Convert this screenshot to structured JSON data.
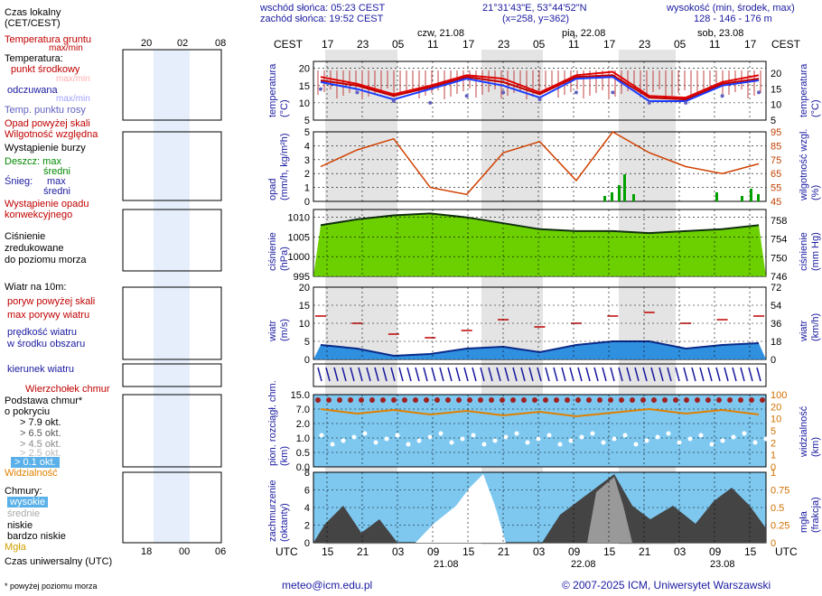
{
  "header": {
    "sunrise": "wschód słońca: 05:23 CEST",
    "sunset": "zachód słońca: 19:52 CEST",
    "coords": "21°31'43\"E, 53°44'52\"N",
    "grid": "(x=258,  y=362)",
    "height_label": "wysokość (min, środek, max)",
    "height_values": "128 - 146 - 176 m",
    "tz_left": "CEST",
    "tz_right": "CEST",
    "utc_left": "UTC",
    "utc_right": "UTC"
  },
  "days": {
    "d1": "czw, 21.08",
    "d2": "pią, 22.08",
    "d3": "sob, 23.08",
    "b1": "21.08",
    "b2": "22.08",
    "b3": "23.08"
  },
  "cest_ticks": [
    "17",
    "23",
    "05",
    "11",
    "17",
    "23",
    "05",
    "11",
    "17",
    "23",
    "05",
    "11",
    "17"
  ],
  "utc_ticks": [
    "15",
    "21",
    "03",
    "09",
    "15",
    "21",
    "03",
    "09",
    "15",
    "21",
    "03",
    "09",
    "15"
  ],
  "legend": {
    "local_time": "Czas lokalny",
    "local_time2": "(CET/CEST)",
    "lt_ticks": [
      "20",
      "02",
      "08"
    ],
    "utc_ticks": [
      "18",
      "00",
      "06"
    ],
    "temp_ground": "Temperatura gruntu",
    "temp_ground2": "max/min",
    "temperature": "Temperatura:",
    "center_point": "punkt środkowy",
    "max_min": "max/min",
    "felt": "odczuwana",
    "max_min2": "max/min",
    "dew": "Temp. punktu rosy",
    "precip_over": "Opad powyżej skali",
    "humidity": "Wilgotność względna",
    "storm": "Wystąpienie burzy",
    "rain": "Deszcz: max",
    "rain_mid": "średni",
    "snow": "Śnieg:",
    "snow_max": "max",
    "snow_mid": "średni",
    "conv": "Wystąpienie opadu",
    "conv2": "konwekcyjnego",
    "pressure": "Ciśnienie",
    "pressure2": "zredukowane",
    "pressure3": "do poziomu morza",
    "wind10": "Wiatr na 10m:",
    "gust_over": "poryw powyżej skali",
    "gust_max": "max porywy wiatru",
    "wind_speed": "prędkość wiatru",
    "wind_center": "w środku obszaru",
    "wind_dir": "kierunek wiatru",
    "cb_top": "Wierzchołek chmur",
    "cloud_base": "Podstawa chmur*",
    "cloud_base2": "o pokryciu",
    "okt1": "> 7.9 okt.",
    "okt2": "> 6.5 okt.",
    "okt3": "> 4.5 okt.",
    "okt4": "> 2.5 okt.",
    "okt5": "> 0.1 okt.",
    "visibility": "Widzialność",
    "clouds": "Chmury:",
    "high": "wysokie",
    "mid": "średnie",
    "low": "niskie",
    "very_low": "bardzo niskie",
    "fog": "Mgła",
    "utc_time": "Czas uniwersalny (UTC)",
    "footnote": "* powyżej poziomu morza"
  },
  "axis_titles": {
    "temp_l": "temperatura",
    "temp_l2": "(°C)",
    "temp_r": "temperatura",
    "temp_r2": "(°C)",
    "prec_l": "opad",
    "prec_l2": "(mm/h, kg/m²h)",
    "prec_r": "wilgotność wzgl.",
    "prec_r2": "(%)",
    "pres_l": "ciśnienie",
    "pres_l2": "(hPa)",
    "pres_r": "ciśnienie",
    "pres_r2": "(mm Hg)",
    "wind_l": "wiatr",
    "wind_l2": "(m/s)",
    "wind_r": "wiatr",
    "wind_r2": "(km/h)",
    "cb_l": "pion. rozciągł. chm.",
    "cb_l2": "(km)",
    "cb_r": "widzialność",
    "cb_r2": "(km)",
    "cc_l": "zachmurzenie",
    "cc_l2": "(oktanty)",
    "cc_r": "mgła",
    "cc_r2": "(frakcja)"
  },
  "footer": {
    "email": "meteo@icm.edu.pl",
    "copyright": "© 2007-2025 ICM, Uniwersytet Warszawski"
  },
  "chart_data": [
    {
      "type": "line",
      "title": "temperatura (°C)",
      "x": [
        "17",
        "23",
        "05",
        "11",
        "17",
        "23",
        "05",
        "11",
        "17",
        "23",
        "05",
        "11",
        "17"
      ],
      "ylim": [
        5,
        22
      ],
      "yticks": [
        5,
        10,
        15,
        20
      ],
      "series": [
        {
          "name": "max",
          "color": "#e00000",
          "values": [
            17.5,
            15.5,
            12.5,
            15,
            18,
            17,
            13,
            18,
            19,
            12,
            11.5,
            16,
            18
          ]
        },
        {
          "name": "punkt środkowy",
          "color": "#c00000",
          "values": [
            16.5,
            15,
            12,
            14.5,
            17.5,
            16,
            12.5,
            17.5,
            18,
            11.5,
            11,
            15.5,
            17
          ]
        },
        {
          "name": "odczuwana",
          "color": "#1a3cff",
          "values": [
            16,
            14,
            11,
            14,
            17,
            15,
            11.5,
            17,
            17.5,
            10.5,
            10.5,
            15,
            16.5
          ]
        },
        {
          "name": "punkt rosy",
          "color": "#6060c0",
          "values": [
            14,
            13,
            10.5,
            10,
            12,
            13,
            11,
            13,
            13,
            10,
            10,
            12,
            13
          ]
        }
      ]
    },
    {
      "type": "bar",
      "title": "opad (mm/h) / wilgotność wzgl. (%)",
      "ylim": [
        0,
        5
      ],
      "yticks": [
        0,
        1,
        2,
        3,
        4,
        5
      ],
      "y2ticks": [
        45,
        55,
        65,
        75,
        85,
        95
      ],
      "series": [
        {
          "name": "wilgotność",
          "color": "#d04000",
          "values": [
            70,
            82,
            90,
            55,
            50,
            80,
            88,
            60,
            95,
            80,
            70,
            65,
            72
          ]
        }
      ]
    },
    {
      "type": "area",
      "title": "ciśnienie (hPa)",
      "ylim": [
        995,
        1012
      ],
      "yticks": [
        995,
        1000,
        1005,
        1010
      ],
      "y2ticks": [
        746,
        750,
        754,
        758
      ],
      "series": [
        {
          "name": "ciśnienie",
          "color": "#7fdd00",
          "values": [
            1008,
            1009.5,
            1010.5,
            1011,
            1010,
            1008.5,
            1007,
            1006.5,
            1006.5,
            1006,
            1006.5,
            1007,
            1008
          ]
        }
      ]
    },
    {
      "type": "area",
      "title": "wiatr (m/s)",
      "ylim": [
        0,
        20
      ],
      "yticks": [
        0,
        5,
        10,
        15,
        20
      ],
      "y2ticks": [
        0,
        18,
        36,
        54,
        72
      ],
      "series": [
        {
          "name": "prędkość",
          "color": "#1040c0",
          "values": [
            4,
            3,
            1,
            1.5,
            3,
            3.5,
            2,
            4,
            5,
            5,
            3,
            4,
            4.5
          ]
        },
        {
          "name": "max porywy",
          "color": "#c00000",
          "values": [
            12,
            10,
            7,
            6,
            8,
            11,
            9,
            10,
            12,
            13,
            10,
            11,
            12
          ]
        }
      ]
    },
    {
      "type": "scatter",
      "title": "pion. rozciągł. chm. (km) / widzialność (km)",
      "yticks": [
        0.0,
        0.5,
        1.0,
        2.0,
        7.0,
        15.0
      ],
      "y2ticks": [
        0,
        1,
        2,
        5,
        10,
        20,
        100
      ]
    },
    {
      "type": "area",
      "title": "zachmurzenie (oktanty) / mgła (frakcja)",
      "ylim": [
        0,
        8
      ],
      "yticks": [
        0,
        2,
        4,
        6,
        8
      ],
      "y2ticks": [
        0,
        0.25,
        0.5,
        0.75,
        1
      ]
    }
  ]
}
